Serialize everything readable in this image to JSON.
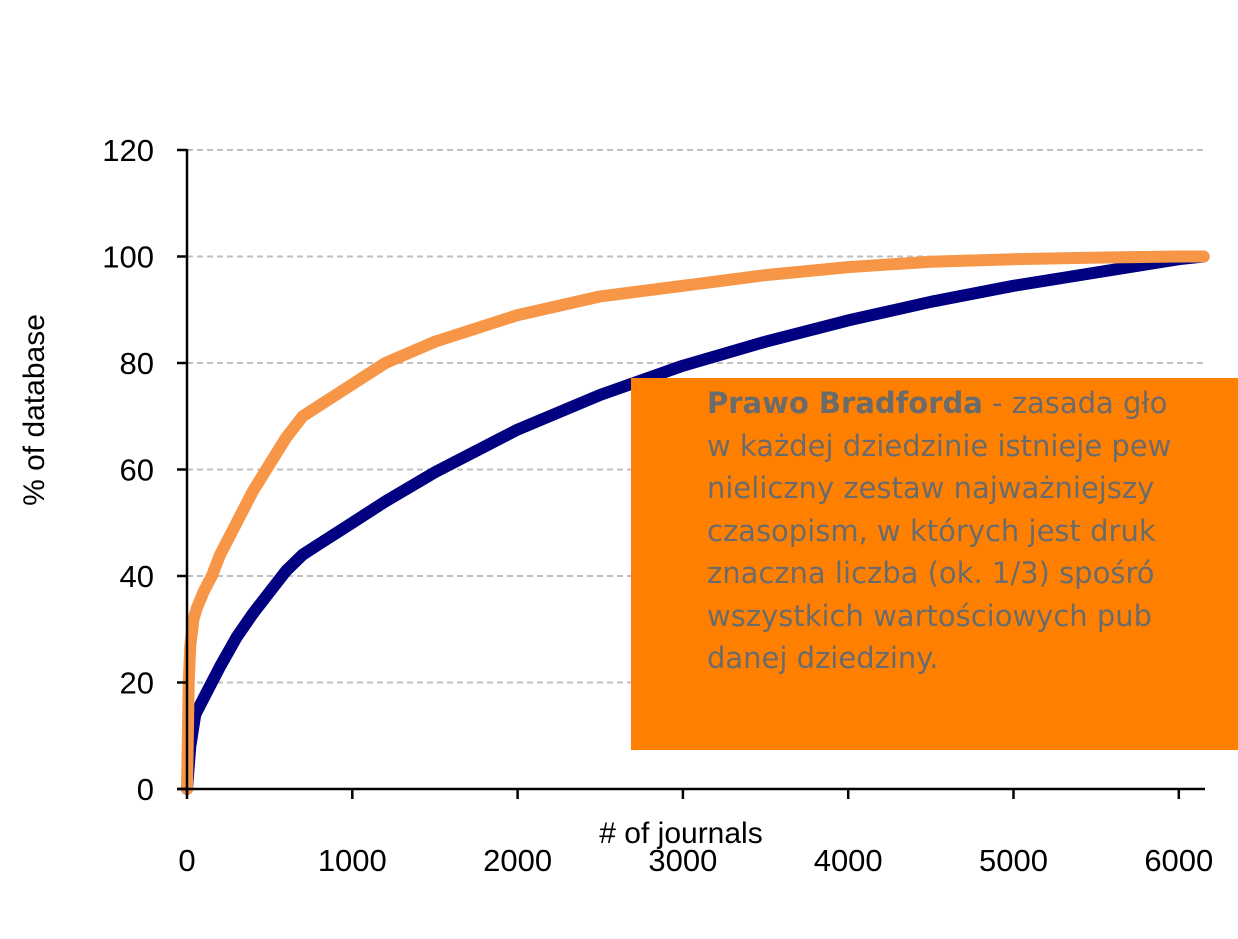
{
  "chart_data": {
    "type": "line",
    "title": "",
    "xlabel": "# of journals",
    "ylabel": "% of database",
    "xlim": [
      0,
      6200
    ],
    "ylim": [
      0,
      120
    ],
    "x_ticks": [
      "0",
      "1000",
      "2000",
      "3000",
      "4000",
      "5000",
      "6000"
    ],
    "y_ticks": [
      "0",
      "20",
      "40",
      "60",
      "80",
      "100",
      "120"
    ],
    "grid": "horizontal dashed",
    "legend": "none",
    "series": [
      {
        "color": "#000080",
        "x": [
          0,
          20,
          50,
          100,
          200,
          300,
          400,
          500,
          600,
          700,
          800,
          1000,
          1200,
          1500,
          2000,
          2500,
          3000,
          3500,
          4000,
          4500,
          5000,
          5500,
          6000,
          6150
        ],
        "y": [
          0,
          8,
          14,
          17,
          23,
          28.5,
          33,
          37,
          41,
          44,
          46,
          50,
          54,
          59.5,
          67.5,
          74,
          79.5,
          84,
          88,
          91.5,
          94.5,
          97,
          99.5,
          100
        ]
      },
      {
        "color": "#F79646",
        "x": [
          0,
          10,
          20,
          40,
          60,
          100,
          150,
          200,
          300,
          400,
          500,
          600,
          700,
          800,
          1000,
          1200,
          1500,
          2000,
          2500,
          3000,
          3500,
          4000,
          4500,
          5000,
          5500,
          6000,
          6150
        ],
        "y": [
          0,
          20,
          27,
          32,
          34,
          37,
          40,
          44,
          50,
          56,
          61,
          66,
          70,
          72,
          76,
          80,
          84,
          89,
          92.5,
          94.5,
          96.5,
          98,
          99,
          99.5,
          99.8,
          100,
          100
        ]
      }
    ]
  },
  "colors": {
    "annotation_bg": "#FF8000",
    "annotation_text": "#6B6B6B",
    "grid": "#BFBFBF",
    "axis": "#000000"
  },
  "annotation": {
    "term": "Prawo Bradforda",
    "lines": [
      " - zasada gło",
      "w każdej dziedzinie istnieje pew",
      "nieliczny zestaw najważniejszy",
      "czasopism, w których jest druk",
      "znaczna liczba (ok. 1/3) spośró",
      "wszystkich wartościowych pub",
      "danej dziedziny."
    ]
  }
}
